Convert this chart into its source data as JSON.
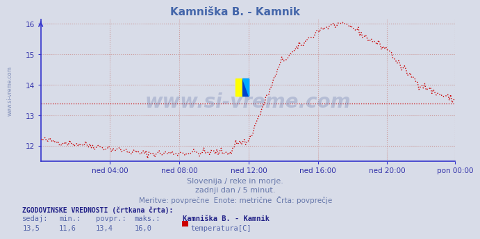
{
  "title": "Kamniška B. - Kamnik",
  "title_color": "#4466aa",
  "bg_color": "#d8dce8",
  "plot_bg_color": "#d8dce8",
  "grid_color": "#cc9999",
  "grid_linestyle": "dotted",
  "axis_color": "#3333cc",
  "line_color": "#cc0000",
  "line_style": "dotted",
  "avg_line_color": "#cc0000",
  "avg_line_style": "dotted",
  "avg_value": 13.4,
  "ylim_min": 11.5,
  "ylim_max": 16.15,
  "yticks": [
    12,
    13,
    14,
    15,
    16
  ],
  "ylabel_color": "#3333aa",
  "watermark": "www.si-vreme.com",
  "watermark_color": "#6677aa",
  "watermark_alpha": 0.3,
  "subtitle1": "Slovenija / reke in morje.",
  "subtitle2": "zadnji dan / 5 minut.",
  "subtitle3": "Meritve: povprečne  Enote: metrične  Črta: povprečje",
  "subtitle_color": "#6677aa",
  "legend_label_bold": "ZGODOVINSKE VREDNOSTI (črtkana črta):",
  "legend_sedaj": "sedaj:",
  "legend_min": "min.:",
  "legend_povpr": "povpr.:",
  "legend_maks": "maks.:",
  "legend_station": "Kamniška B. - Kamnik",
  "legend_values": [
    "13,5",
    "11,6",
    "13,4",
    "16,0"
  ],
  "legend_series": "temperatura[C]",
  "legend_color": "#5566aa",
  "legend_bold_color": "#222288",
  "n_points": 288,
  "x_tick_labels": [
    "ned 04:00",
    "ned 08:00",
    "ned 12:00",
    "ned 16:00",
    "ned 20:00",
    "pon 00:00"
  ],
  "x_tick_positions": [
    48,
    96,
    144,
    192,
    240,
    287
  ],
  "side_label": "www.si-vreme.com",
  "side_label_color": "#6677aa",
  "logo_yellow": "#ffff00",
  "logo_blue": "#0044cc",
  "logo_cyan": "#00aaff"
}
